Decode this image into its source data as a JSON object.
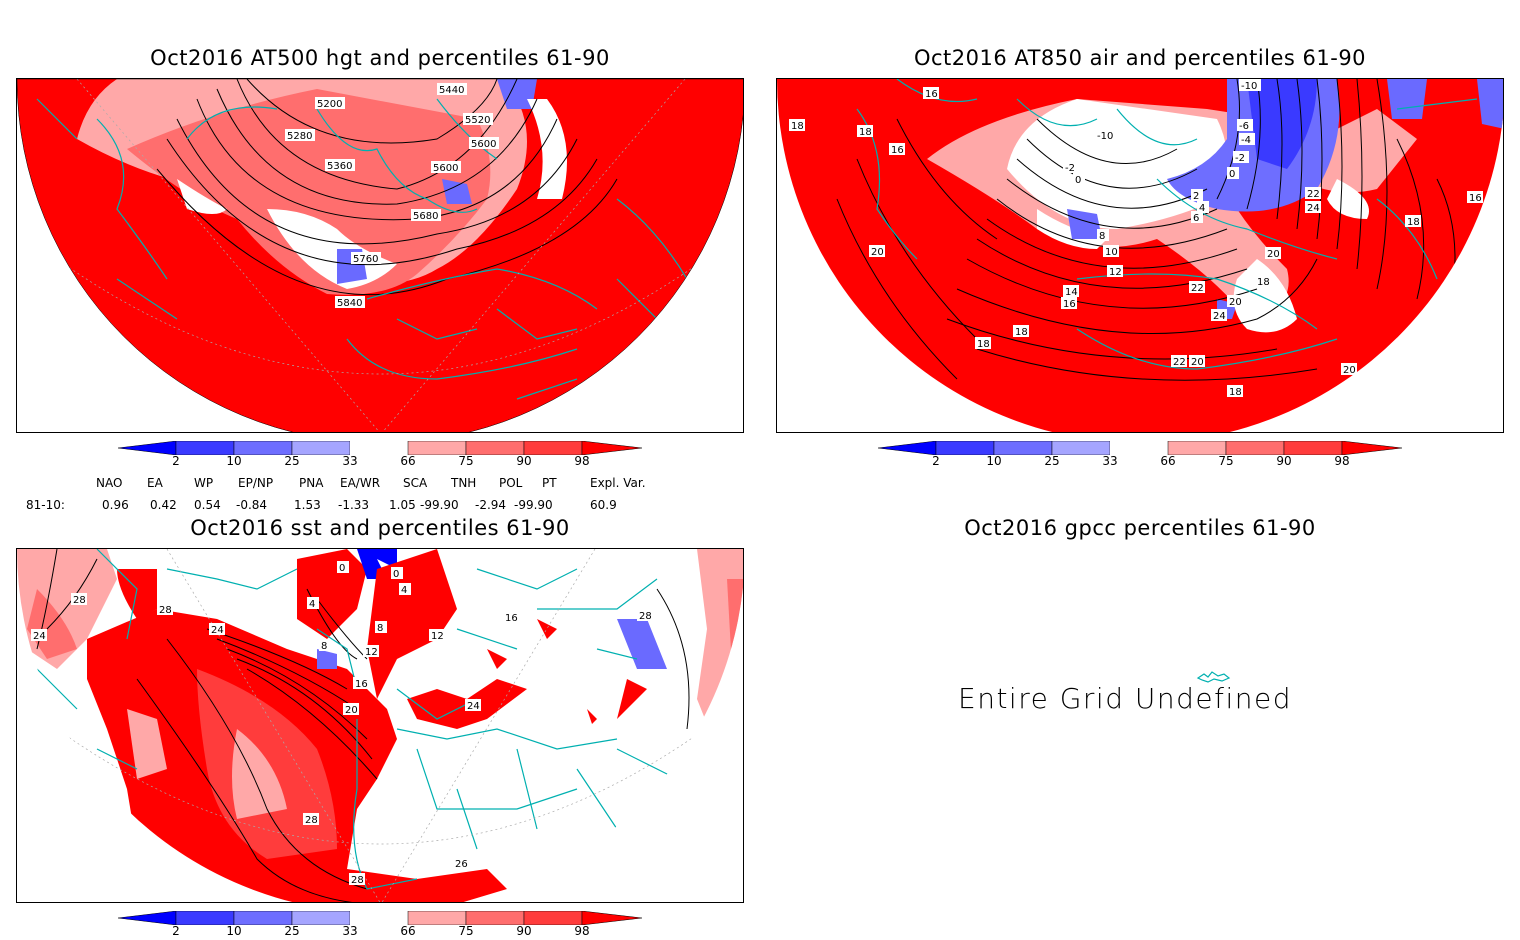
{
  "panels": {
    "hgt": {
      "title": "Oct2016 AT500 hgt and percentiles 61-90",
      "contour_labels": [
        "5200",
        "5280",
        "5360",
        "5440",
        "5520",
        "5600",
        "5600",
        "5680",
        "5760",
        "5840"
      ]
    },
    "air": {
      "title": "Oct2016 AT850 air and percentiles 61-90",
      "contour_labels": [
        "16",
        "18",
        "18",
        "16",
        "20",
        "18",
        "18",
        "-10",
        "-10",
        "-6",
        "-4",
        "-2",
        "-2",
        "0",
        "0",
        "2",
        "4",
        "6",
        "8",
        "10",
        "12",
        "14",
        "16",
        "18",
        "20",
        "20",
        "22",
        "22",
        "24",
        "24",
        "22",
        "18",
        "16",
        "20",
        "18",
        "20"
      ]
    },
    "sst": {
      "title": "Oct2016 sst and percentiles 61-90",
      "contour_labels": [
        "28",
        "24",
        "28",
        "24",
        "4",
        "0",
        "0",
        "4",
        "8",
        "8",
        "12",
        "16",
        "20",
        "12",
        "16",
        "24",
        "28",
        "28",
        "26",
        "28"
      ]
    },
    "gpcc": {
      "title": "Oct2016 gpcc percentiles 61-90",
      "message": "Entire Grid Undefined"
    }
  },
  "colorbar": {
    "labels": [
      "2",
      "10",
      "25",
      "33",
      "66",
      "75",
      "90",
      "98"
    ],
    "colors": [
      "#0000ff",
      "#3a3aff",
      "#6e6eff",
      "#a5a5ff",
      "#ffffff",
      "#ffa8a8",
      "#ff6e6e",
      "#ff3c3c",
      "#ff0000"
    ]
  },
  "indices": {
    "headers": [
      "NAO",
      "EA",
      "WP",
      "EP/NP",
      "PNA",
      "EA/WR",
      "SCA",
      "TNH",
      "POL",
      "PT",
      "Expl. Var."
    ],
    "row_label": "81-10:",
    "values": [
      "0.96",
      "0.42",
      "0.54",
      "-0.84",
      "1.53",
      "-1.33",
      "1.05",
      "-99.90",
      "-2.94",
      "-99.90",
      "60.9"
    ]
  },
  "colors": {
    "coast": "#00b0b0",
    "red": "#ff0000",
    "blue": "#6a6aff"
  }
}
